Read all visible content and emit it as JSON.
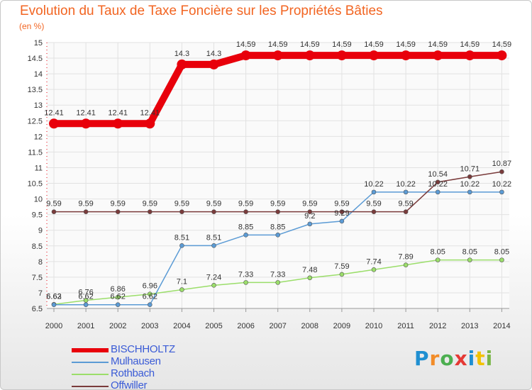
{
  "title": "Evolution du Taux de Taxe Foncière sur les Propriétés Bâties",
  "unit_label": "(en %)",
  "logo": {
    "letters": [
      "P",
      "r",
      "o",
      "x",
      "i",
      "t",
      "i"
    ],
    "colors": [
      "#1f8fd1",
      "#f28c28",
      "#4caf50",
      "#e53935",
      "#1f8fd1",
      "#f2c200",
      "#7ab648"
    ]
  },
  "chart_data": {
    "type": "line",
    "title": "Evolution du Taux de Taxe Foncière sur les Propriétés Bâties",
    "ylabel": "(en %)",
    "xlabel": "",
    "ylim": [
      6.5,
      15
    ],
    "yticks": [
      "6.5",
      "7",
      "7.5",
      "8",
      "8.5",
      "9",
      "9.5",
      "10",
      "10.5",
      "11",
      "11.5",
      "12",
      "12.5",
      "13",
      "13.5",
      "14",
      "14.5",
      "15"
    ],
    "categories": [
      "2000",
      "2001",
      "2002",
      "2003",
      "2004",
      "2005",
      "2006",
      "2007",
      "2008",
      "2009",
      "2010",
      "2011",
      "2012",
      "2013",
      "2014"
    ],
    "series": [
      {
        "name": "BISCHHOLTZ",
        "color": "#e8000b",
        "values": [
          12.41,
          12.41,
          12.41,
          12.41,
          14.3,
          14.3,
          14.59,
          14.59,
          14.59,
          14.59,
          14.59,
          14.59,
          14.59,
          14.59,
          14.59
        ],
        "labels": [
          "12.41",
          "12.41",
          "12.41",
          "12.41",
          "14.3",
          "14.3",
          "14.59",
          "14.59",
          "14.59",
          "14.59",
          "14.59",
          "14.59",
          "14.59",
          "14.59",
          "14.59"
        ]
      },
      {
        "name": "Mulhausen",
        "color": "#5b9bd5",
        "values": [
          6.62,
          6.62,
          6.62,
          6.62,
          8.51,
          8.51,
          8.85,
          8.85,
          9.2,
          9.29,
          10.22,
          10.22,
          10.22,
          10.22,
          10.22
        ],
        "labels": [
          "6.62",
          "6.62",
          "6.62",
          "6.62",
          "8.51",
          "8.51",
          "8.85",
          "8.85",
          "9.2",
          "9.29",
          "10.22",
          "10.22",
          "10.22",
          "10.22",
          "10.22"
        ]
      },
      {
        "name": "Rothbach",
        "color": "#9bde6a",
        "values": [
          6.63,
          6.76,
          6.86,
          6.96,
          7.1,
          7.24,
          7.33,
          7.33,
          7.48,
          7.59,
          7.74,
          7.89,
          8.05,
          8.05,
          8.05
        ],
        "labels": [
          "6.63",
          "6.76",
          "6.86",
          "6.96",
          "7.1",
          "7.24",
          "7.33",
          "7.33",
          "7.48",
          "7.59",
          "7.74",
          "7.89",
          "8.05",
          "8.05",
          "8.05"
        ]
      },
      {
        "name": "Offwiller",
        "color": "#7a3b3b",
        "values": [
          9.59,
          9.59,
          9.59,
          9.59,
          9.59,
          9.59,
          9.59,
          9.59,
          9.59,
          9.59,
          9.59,
          9.59,
          10.54,
          10.71,
          10.87
        ],
        "labels": [
          "9.59",
          "9.59",
          "9.59",
          "9.59",
          "9.59",
          "9.59",
          "9.59",
          "9.59",
          "9.59",
          "9.59",
          "9.59",
          "9.59",
          "10.54",
          "10.71",
          "10.87"
        ]
      }
    ],
    "legend": "bottom-left",
    "grid": true
  }
}
